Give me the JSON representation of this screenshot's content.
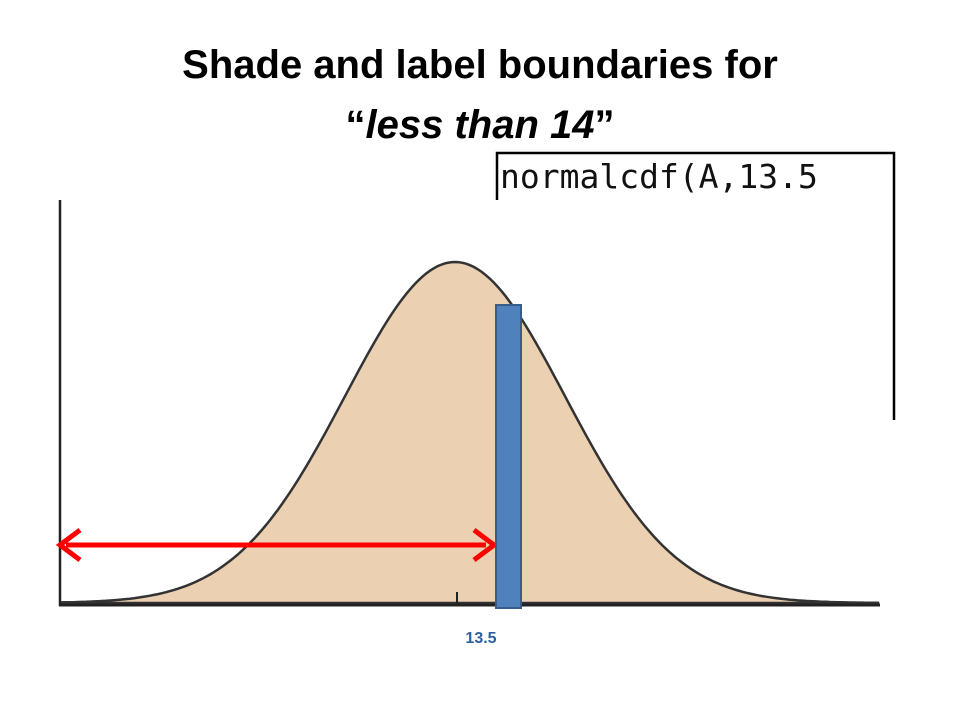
{
  "title": {
    "line1": "Shade and label boundaries for",
    "line2": {
      "open": "“",
      "text": "less than 14",
      "close": "”"
    }
  },
  "calculator": {
    "text": "normalcdf(A,13.5"
  },
  "boundary_label": "13.5"
}
